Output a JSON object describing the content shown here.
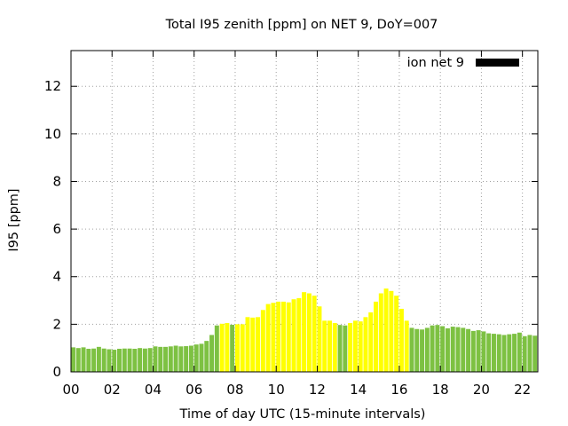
{
  "chart_data": {
    "type": "bar",
    "title": "Total I95 zenith [ppm] on NET 9, DoY=007",
    "xlabel": "Time of day UTC (15-minute intervals)",
    "ylabel": "I95 [ppm]",
    "xlim": [
      0,
      22.75
    ],
    "ylim": [
      0,
      13.5
    ],
    "x_ticks": [
      0,
      2,
      4,
      6,
      8,
      10,
      12,
      14,
      16,
      18,
      20,
      22
    ],
    "x_tick_labels": [
      "00",
      "02",
      "04",
      "06",
      "08",
      "10",
      "12",
      "14",
      "16",
      "18",
      "20",
      "22"
    ],
    "y_ticks": [
      0,
      2,
      4,
      6,
      8,
      10,
      12
    ],
    "y_tick_labels": [
      "0",
      "2",
      "4",
      "6",
      "8",
      "10",
      "12"
    ],
    "grid": true,
    "legend": {
      "label": "ion net 9",
      "position": "top-right",
      "color": "#000000"
    },
    "colors": {
      "low": "#7dc142",
      "high": "#ffff00",
      "threshold": 2.0
    },
    "bar_interval_hours": 0.25,
    "x": [
      0.0,
      0.25,
      0.5,
      0.75,
      1.0,
      1.25,
      1.5,
      1.75,
      2.0,
      2.25,
      2.5,
      2.75,
      3.0,
      3.25,
      3.5,
      3.75,
      4.0,
      4.25,
      4.5,
      4.75,
      5.0,
      5.25,
      5.5,
      5.75,
      6.0,
      6.25,
      6.5,
      6.75,
      7.0,
      7.25,
      7.5,
      7.75,
      8.0,
      8.25,
      8.5,
      8.75,
      9.0,
      9.25,
      9.5,
      9.75,
      10.0,
      10.25,
      10.5,
      10.75,
      11.0,
      11.25,
      11.5,
      11.75,
      12.0,
      12.25,
      12.5,
      12.75,
      13.0,
      13.25,
      13.5,
      13.75,
      14.0,
      14.25,
      14.5,
      14.75,
      15.0,
      15.25,
      15.5,
      15.75,
      16.0,
      16.25,
      16.5,
      16.75,
      17.0,
      17.25,
      17.5,
      17.75,
      18.0,
      18.25,
      18.5,
      18.75,
      19.0,
      19.25,
      19.5,
      19.75,
      20.0,
      20.25,
      20.5,
      20.75,
      21.0,
      21.25,
      21.5,
      21.75,
      22.0,
      22.25,
      22.5
    ],
    "values": [
      1.03,
      1.0,
      1.03,
      0.97,
      0.98,
      1.05,
      0.98,
      0.95,
      0.93,
      0.97,
      0.98,
      0.98,
      0.97,
      1.0,
      0.98,
      1.0,
      1.07,
      1.05,
      1.05,
      1.07,
      1.1,
      1.07,
      1.08,
      1.1,
      1.15,
      1.18,
      1.3,
      1.55,
      1.95,
      2.02,
      2.05,
      1.98,
      2.0,
      2.0,
      2.3,
      2.28,
      2.3,
      2.6,
      2.85,
      2.9,
      2.95,
      2.95,
      2.92,
      3.05,
      3.1,
      3.35,
      3.3,
      3.2,
      2.75,
      2.15,
      2.15,
      2.05,
      1.97,
      1.95,
      2.05,
      2.15,
      2.12,
      2.3,
      2.5,
      2.95,
      3.3,
      3.5,
      3.4,
      3.2,
      2.65,
      2.15,
      1.85,
      1.8,
      1.78,
      1.85,
      1.95,
      1.97,
      1.92,
      1.83,
      1.9,
      1.88,
      1.85,
      1.8,
      1.72,
      1.75,
      1.7,
      1.62,
      1.6,
      1.58,
      1.55,
      1.58,
      1.6,
      1.65,
      1.5,
      1.55,
      1.52
    ]
  }
}
